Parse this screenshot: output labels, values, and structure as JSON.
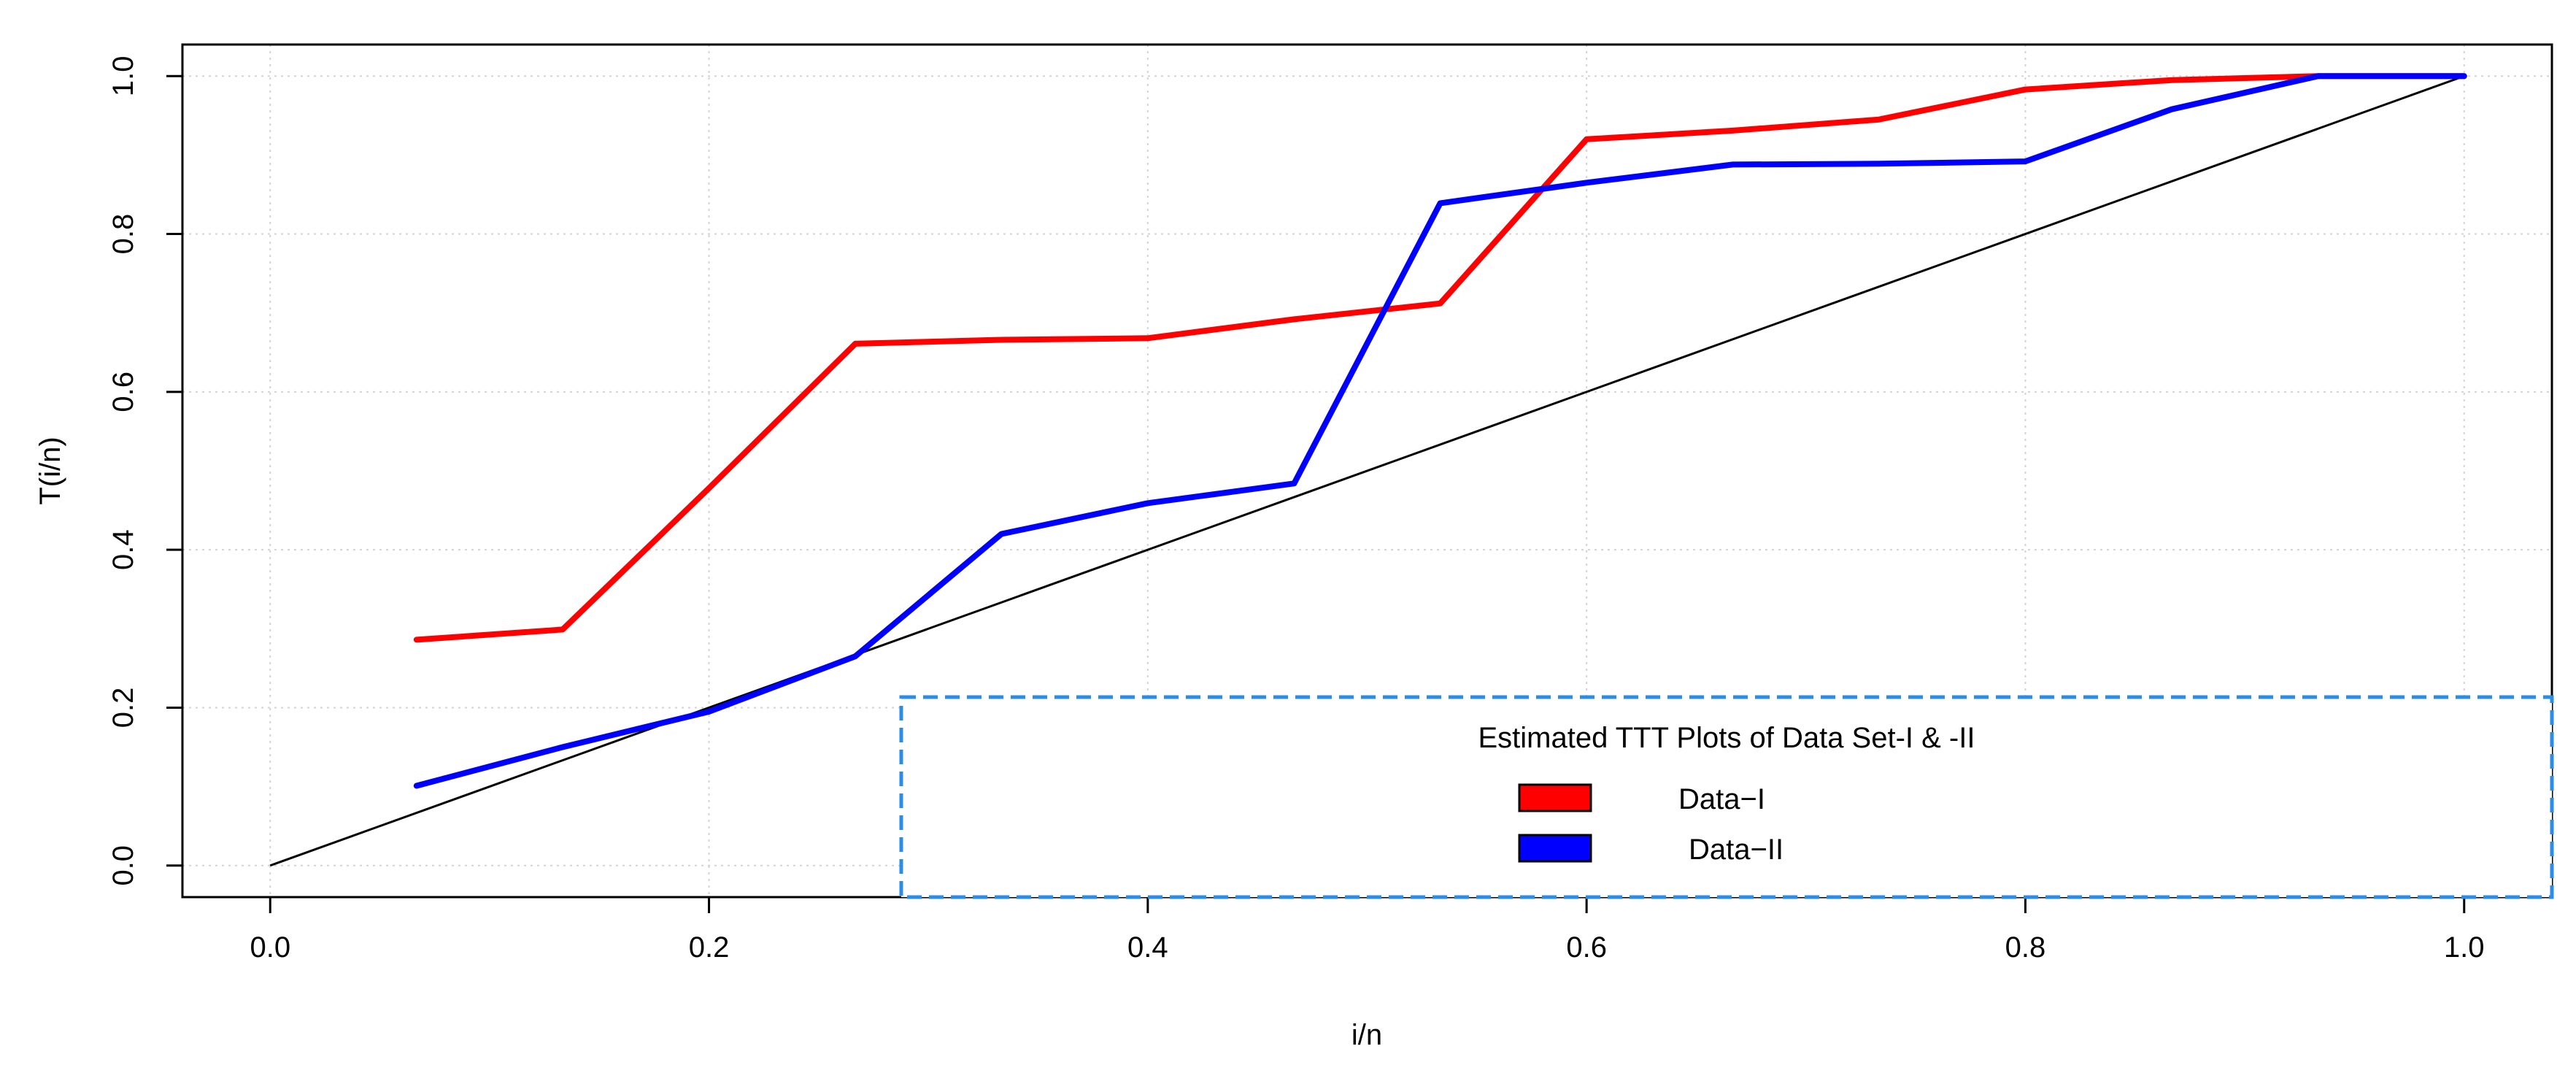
{
  "chart_data": {
    "type": "line",
    "xlabel": "i/n",
    "ylabel": "T(i/n)",
    "xlim": [
      -0.04,
      1.04
    ],
    "ylim": [
      -0.04,
      1.04
    ],
    "x_ticks": [
      "0.0",
      "0.2",
      "0.4",
      "0.6",
      "0.8",
      "1.0"
    ],
    "y_ticks": [
      "0.0",
      "0.2",
      "0.4",
      "0.6",
      "0.8",
      "1.0"
    ],
    "grid": true,
    "legend": {
      "title": "Estimated TTT Plots of Data Set-I & -II",
      "position": "bottom-right"
    },
    "series": [
      {
        "name": "Data−I",
        "color": "#ff0000",
        "x": [
          0.0667,
          0.1333,
          0.2,
          0.2667,
          0.3333,
          0.4,
          0.4667,
          0.5333,
          0.6,
          0.6667,
          0.7333,
          0.8,
          0.8667,
          0.9333,
          1.0
        ],
        "y": [
          0.286,
          0.299,
          0.478,
          0.661,
          0.666,
          0.668,
          0.692,
          0.712,
          0.92,
          0.931,
          0.945,
          0.983,
          0.995,
          1.0,
          1.0
        ]
      },
      {
        "name": "Data−II",
        "color": "#0000ff",
        "x": [
          0.0667,
          0.1333,
          0.2,
          0.2667,
          0.3333,
          0.4,
          0.4667,
          0.5333,
          0.6,
          0.6667,
          0.7333,
          0.8,
          0.8667,
          0.9333,
          1.0
        ],
        "y": [
          0.101,
          0.15,
          0.195,
          0.265,
          0.42,
          0.459,
          0.484,
          0.839,
          0.865,
          0.888,
          0.889,
          0.892,
          0.958,
          1.0,
          1.0
        ]
      }
    ],
    "reference_line": {
      "x": [
        0,
        1
      ],
      "y": [
        0,
        1
      ],
      "color": "#000000"
    }
  }
}
